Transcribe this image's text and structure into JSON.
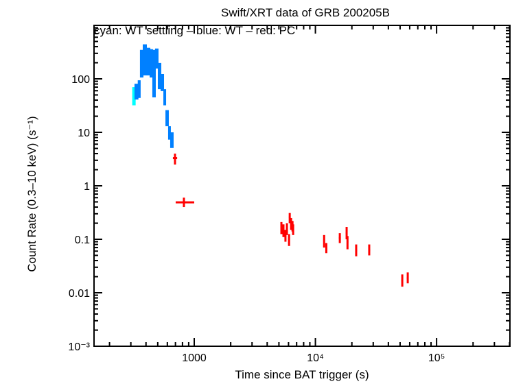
{
  "chart_data": {
    "type": "scatter",
    "title": "Swift/XRT data of GRB 200205B",
    "subtitle": "cyan: WT settling – blue: WT – red: PC",
    "xlabel": "Time since BAT trigger (s)",
    "ylabel": "Count Rate (0.3–10 keV) (s⁻¹)",
    "xscale": "log",
    "yscale": "log",
    "xlim": [
      149,
      403000
    ],
    "ylim": [
      0.001,
      1000
    ],
    "grid": false,
    "x_ticks": [
      {
        "value": 1000,
        "label": "1000"
      },
      {
        "value": 10000,
        "label": "10⁴"
      },
      {
        "value": 100000,
        "label": "10⁵"
      }
    ],
    "y_ticks": [
      {
        "value": 0.001,
        "label": "10⁻³"
      },
      {
        "value": 0.01,
        "label": "0.01"
      },
      {
        "value": 0.1,
        "label": "0.1"
      },
      {
        "value": 1,
        "label": "1"
      },
      {
        "value": 10,
        "label": "10"
      },
      {
        "value": 100,
        "label": "100"
      }
    ],
    "colors": {
      "wt_settling": "#00ffff",
      "wt": "#0080ff",
      "pc": "#ff0000"
    },
    "series": [
      {
        "mode": "WT settling",
        "color": "#00ffff",
        "columns": [
          "t",
          "rate_lo",
          "rate_hi"
        ],
        "points": [
          [
            316,
            32,
            70
          ]
        ]
      },
      {
        "mode": "WT",
        "color": "#0080ff",
        "columns": [
          "t",
          "rate_lo",
          "rate_hi"
        ],
        "points": [
          [
            330,
            41,
            81
          ],
          [
            351,
            44,
            94
          ],
          [
            366,
            106,
            348
          ],
          [
            386,
            116,
            442
          ],
          [
            412,
            116,
            381
          ],
          [
            440,
            106,
            359
          ],
          [
            463,
            45,
            348
          ],
          [
            488,
            156,
            369
          ],
          [
            514,
            64,
            198
          ],
          [
            542,
            59,
            123
          ],
          [
            571,
            32,
            64
          ],
          [
            594,
            13,
            26
          ],
          [
            625,
            7.3,
            13
          ],
          [
            650,
            5.1,
            10
          ]
        ]
      },
      {
        "mode": "PC",
        "color": "#ff0000",
        "columns": [
          "t",
          "t_lo",
          "t_hi",
          "rate",
          "rate_lo",
          "rate_hi"
        ],
        "points": [
          [
            694,
            667,
            723,
            3.3,
            2.5,
            4.0
          ],
          [
            822,
            703,
            1000,
            0.49,
            0.4,
            0.6
          ],
          [
            5240,
            5140,
            5340,
            0.168,
            0.125,
            0.21
          ],
          [
            5450,
            5350,
            5550,
            0.146,
            0.11,
            0.19
          ],
          [
            5660,
            5560,
            5760,
            0.118,
            0.09,
            0.15
          ],
          [
            5820,
            5720,
            5920,
            0.154,
            0.12,
            0.2
          ],
          [
            6060,
            5960,
            6160,
            0.1,
            0.075,
            0.125
          ],
          [
            6140,
            6040,
            6240,
            0.258,
            0.2,
            0.31
          ],
          [
            6300,
            6200,
            6400,
            0.196,
            0.15,
            0.25
          ],
          [
            6470,
            6370,
            6570,
            0.174,
            0.14,
            0.22
          ],
          [
            6550,
            6450,
            6650,
            0.154,
            0.12,
            0.19
          ],
          [
            11800,
            11600,
            12000,
            0.095,
            0.07,
            0.12
          ],
          [
            12300,
            12100,
            12500,
            0.067,
            0.055,
            0.085
          ],
          [
            15900,
            15600,
            16200,
            0.106,
            0.085,
            0.13
          ],
          [
            18100,
            17800,
            18400,
            0.131,
            0.1,
            0.17
          ],
          [
            18400,
            18100,
            18700,
            0.09,
            0.065,
            0.115
          ],
          [
            21700,
            21300,
            22100,
            0.062,
            0.048,
            0.08
          ],
          [
            27800,
            27300,
            28300,
            0.063,
            0.05,
            0.08
          ],
          [
            52100,
            51200,
            53000,
            0.017,
            0.013,
            0.022
          ],
          [
            57800,
            56800,
            58800,
            0.0188,
            0.015,
            0.024
          ]
        ]
      }
    ]
  }
}
